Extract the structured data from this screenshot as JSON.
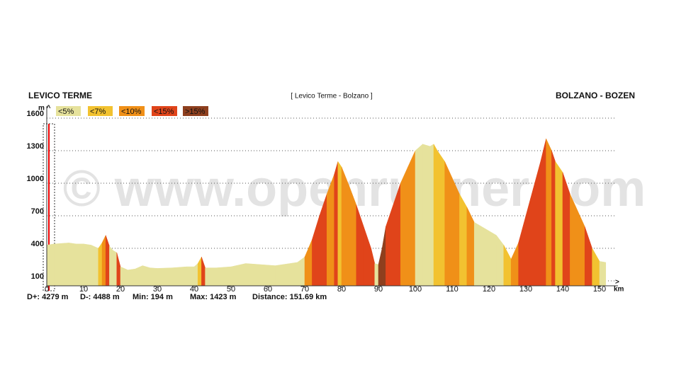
{
  "chart_data": {
    "type": "area",
    "title": "[ Levico Terme - Bolzano ]",
    "start_label": "LEVICO TERME",
    "end_label": "BOLZANO - BOZEN",
    "y_unit": "m ^",
    "x_unit": "km",
    "x_arrow": ">",
    "watermark": "© www.openrunner.com",
    "stats": [
      "D+: 4279 m",
      "D-: 4488 m",
      "Min: 194 m",
      "Max: 1423 m",
      "Distance: 151.69 km"
    ],
    "legend": [
      {
        "label": "<5%",
        "max": 5,
        "color": "#e6e29c"
      },
      {
        "label": "<7%",
        "max": 7,
        "color": "#f2c230"
      },
      {
        "label": "<10%",
        "max": 10,
        "color": "#f09018"
      },
      {
        "label": "<15%",
        "max": 15,
        "color": "#e0441a"
      },
      {
        "label": ">15%",
        "color": "#8e3f1e"
      }
    ],
    "x": [
      0,
      2,
      4,
      6,
      8,
      10,
      12,
      14,
      15,
      16,
      17,
      18,
      19,
      20,
      22,
      24,
      26,
      28,
      30,
      34,
      38,
      40,
      41,
      42,
      43,
      46,
      50,
      54,
      58,
      62,
      66,
      68,
      70,
      72,
      74,
      76,
      78,
      79,
      80,
      82,
      84,
      86,
      88,
      89,
      90,
      91,
      92,
      94,
      96,
      98,
      100,
      102,
      104,
      105,
      106,
      108,
      110,
      112,
      114,
      116,
      118,
      120,
      122,
      124,
      126,
      128,
      130,
      132,
      134,
      135.5,
      137,
      138,
      140,
      142,
      144,
      146,
      148,
      150,
      151.69
    ],
    "series": [
      {
        "name": "Elevation",
        "values": [
          430,
          440,
          445,
          450,
          440,
          440,
          430,
          400,
          450,
          520,
          420,
          380,
          360,
          230,
          200,
          210,
          240,
          220,
          215,
          220,
          230,
          230,
          260,
          320,
          220,
          220,
          230,
          260,
          250,
          240,
          260,
          270,
          320,
          480,
          700,
          900,
          1080,
          1200,
          1150,
          980,
          800,
          600,
          400,
          260,
          250,
          400,
          600,
          800,
          1000,
          1150,
          1300,
          1360,
          1340,
          1360,
          1300,
          1200,
          1050,
          900,
          780,
          640,
          600,
          560,
          520,
          430,
          300,
          450,
          700,
          950,
          1200,
          1410,
          1300,
          1200,
          1100,
          900,
          750,
          600,
          400,
          280,
          270
        ]
      }
    ],
    "xlim": [
      0,
      150
    ],
    "ylim": [
      100,
      1600
    ],
    "xticks": [
      0,
      10,
      20,
      30,
      40,
      50,
      60,
      70,
      80,
      90,
      100,
      110,
      120,
      130,
      140,
      150
    ],
    "yticks": [
      100,
      400,
      700,
      1000,
      1300,
      1600
    ],
    "grid": true
  }
}
